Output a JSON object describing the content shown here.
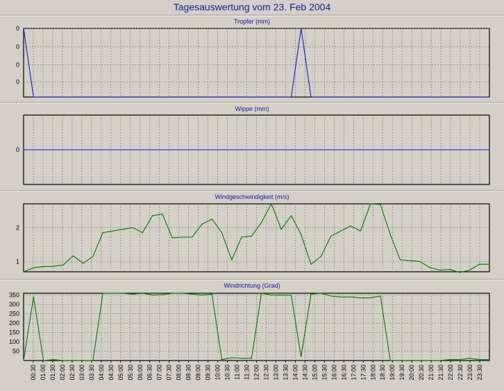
{
  "window_title": "Tagesauswertung vom 23. Feb 2004",
  "colors": {
    "background": "#d4d0c8",
    "plot_bg": "#d4d0c8",
    "title_text": "#1a1a9c",
    "grid": "#7a7a7a",
    "rain_series": "#1a1acc",
    "wind_series": "#007800"
  },
  "x_tick_labels": [
    "00:30",
    "01:00",
    "01:30",
    "02:00",
    "02:30",
    "03:00",
    "03:30",
    "04:00",
    "04:30",
    "05:00",
    "05:30",
    "06:00",
    "06:30",
    "07:00",
    "07:30",
    "08:00",
    "08:30",
    "09:00",
    "09:30",
    "10:00",
    "10:30",
    "11:00",
    "11:30",
    "12:00",
    "12:30",
    "13:00",
    "13:30",
    "14:00",
    "14:30",
    "15:00",
    "15:30",
    "16:00",
    "16:30",
    "17:00",
    "17:30",
    "18:00",
    "18:30",
    "19:00",
    "19:30",
    "20:00",
    "20:30",
    "21:00",
    "21:30",
    "22:00",
    "22:30",
    "23:00",
    "23:30"
  ],
  "chart_data": [
    {
      "type": "line",
      "title": "Tropfer (mm)",
      "ytick_labels": [
        "0",
        "0",
        "0",
        "0"
      ],
      "ylim": [
        0,
        0.1
      ],
      "grid": true,
      "series": [
        {
          "values": [
            0.1,
            0,
            0,
            0,
            0,
            0,
            0,
            0,
            0,
            0,
            0,
            0,
            0,
            0,
            0,
            0,
            0,
            0,
            0,
            0,
            0,
            0,
            0,
            0,
            0,
            0,
            0,
            0,
            0.1,
            0,
            0,
            0,
            0,
            0,
            0,
            0,
            0,
            0,
            0,
            0,
            0,
            0,
            0,
            0,
            0,
            0,
            0,
            0
          ]
        }
      ]
    },
    {
      "type": "line",
      "title": "Wippe (mm)",
      "ytick_labels": [
        "0"
      ],
      "ylim": [
        -1,
        1
      ],
      "grid": true,
      "series": [
        {
          "values": [
            0,
            0,
            0,
            0,
            0,
            0,
            0,
            0,
            0,
            0,
            0,
            0,
            0,
            0,
            0,
            0,
            0,
            0,
            0,
            0,
            0,
            0,
            0,
            0,
            0,
            0,
            0,
            0,
            0,
            0,
            0,
            0,
            0,
            0,
            0,
            0,
            0,
            0,
            0,
            0,
            0,
            0,
            0,
            0,
            0,
            0,
            0,
            0
          ]
        }
      ]
    },
    {
      "type": "line",
      "title": "Windgeschwindigkeit (m/s)",
      "ytick_labels": [
        "1",
        "2"
      ],
      "yticks": [
        1,
        2
      ],
      "ylim": [
        0.7,
        2.7
      ],
      "grid": true,
      "series": [
        {
          "values": [
            0.7,
            0.82,
            0.85,
            0.86,
            0.9,
            1.17,
            0.95,
            1.15,
            1.85,
            1.9,
            1.95,
            2.0,
            1.85,
            2.35,
            2.4,
            1.7,
            1.72,
            1.72,
            2.1,
            2.25,
            1.85,
            1.05,
            1.72,
            1.75,
            2.15,
            2.7,
            1.95,
            2.35,
            1.8,
            0.92,
            1.15,
            1.75,
            1.9,
            2.05,
            1.9,
            2.7,
            2.68,
            1.8,
            1.05,
            1.03,
            1.0,
            0.82,
            0.75,
            0.77,
            0.68,
            0.75,
            0.92,
            0.92
          ]
        }
      ]
    },
    {
      "type": "line",
      "title": "Windrichtung (Grad)",
      "ytick_labels": [
        "50",
        "100",
        "150",
        "200",
        "250",
        "300",
        "350"
      ],
      "yticks": [
        50,
        100,
        150,
        200,
        250,
        300,
        350
      ],
      "ylim": [
        0,
        360
      ],
      "grid": true,
      "series": [
        {
          "values": [
            0,
            340,
            0,
            5,
            0,
            0,
            0,
            0,
            360,
            360,
            360,
            355,
            360,
            350,
            352,
            360,
            360,
            355,
            350,
            355,
            5,
            15,
            12,
            12,
            360,
            350,
            350,
            350,
            20,
            355,
            360,
            345,
            340,
            340,
            335,
            335,
            345,
            0,
            0,
            0,
            0,
            0,
            0,
            5,
            5,
            12,
            5,
            5
          ]
        }
      ]
    }
  ]
}
